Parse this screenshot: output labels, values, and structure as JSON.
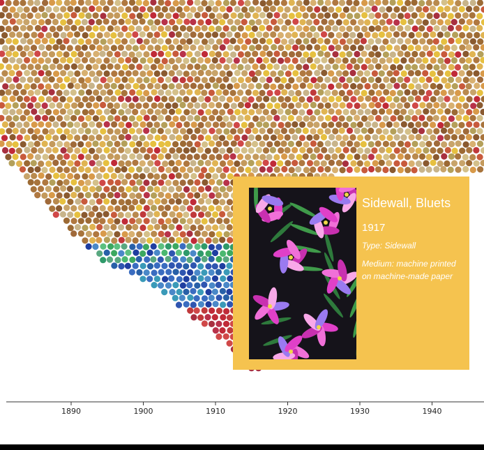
{
  "chart_data": {
    "type": "scatter",
    "description_kind": "beeswarm of collection objects by year, colored by dominant color",
    "xlabel": "",
    "ylabel": "",
    "xlim": [
      1880,
      1948
    ],
    "x_ticks": [
      "1890",
      "1900",
      "1910",
      "1920",
      "1930",
      "1940"
    ],
    "grid": false
  },
  "tooltip": {
    "title": "Sidewall, Bluets",
    "year": "1917",
    "type": "Type: Sidewall",
    "medium": "Medium: machine printed on machine-made paper"
  },
  "colors": {
    "tooltip_background": "#f5c34f",
    "swatch_background": "#15131a"
  }
}
